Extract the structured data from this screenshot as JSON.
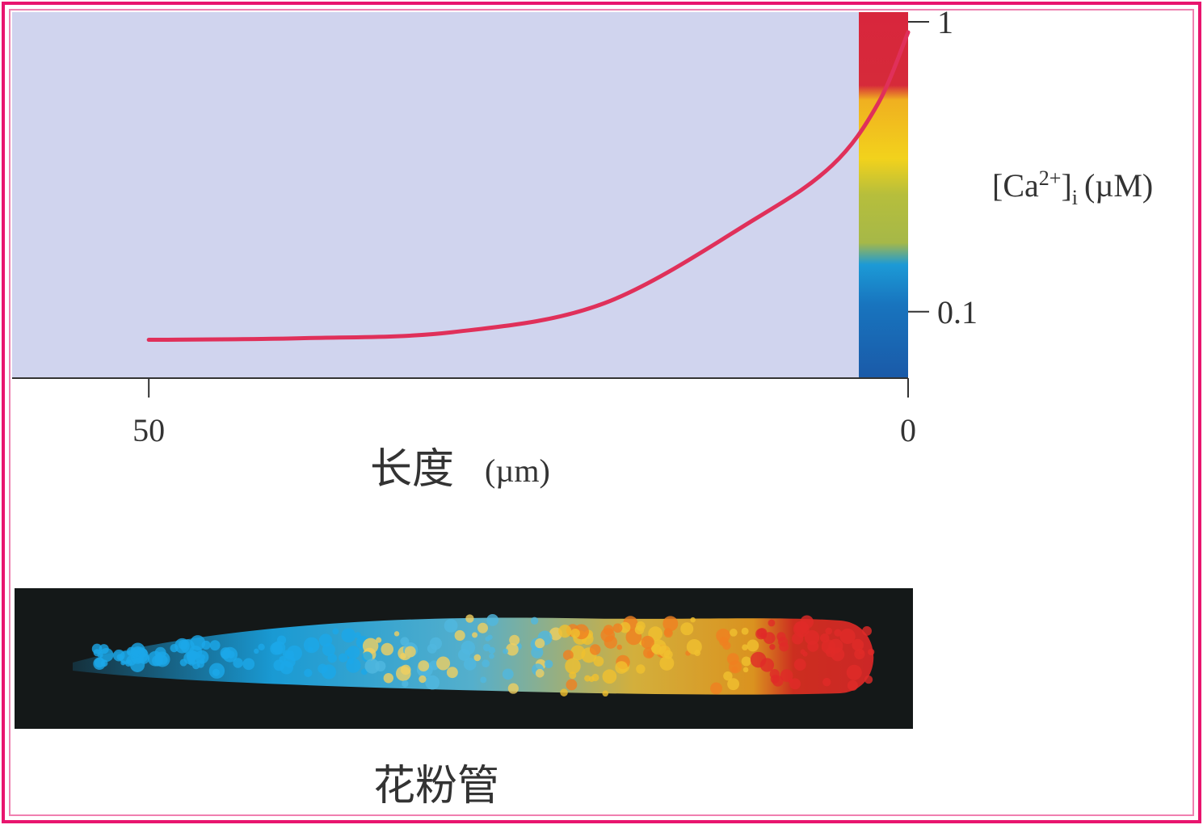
{
  "chart_data": {
    "type": "line",
    "x_label": "长度",
    "x_unit": "(µm)",
    "y_label": {
      "open": "[Ca",
      "sup": "2+",
      "close": "]",
      "sub": "i",
      "unit": "(µM)"
    },
    "x": [
      50,
      40,
      30,
      20,
      10,
      5,
      2,
      0
    ],
    "series": [
      {
        "color": "#e0305a",
        "values": [
          0.08,
          0.081,
          0.085,
          0.107,
          0.21,
          0.32,
          0.52,
          0.92
        ]
      }
    ],
    "xlim": [
      59,
      0
    ],
    "xticks": [
      50,
      0
    ],
    "ylim": [
      0.059,
      1.08
    ],
    "yticks": [
      1,
      0.1
    ],
    "yscale": "log",
    "image_caption": "花粉管"
  }
}
